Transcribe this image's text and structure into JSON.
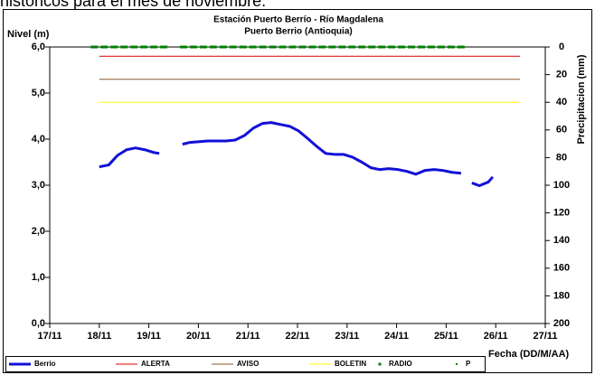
{
  "chart_data": {
    "type": "line",
    "caption": "históricos para el mes de noviembre.",
    "title": "Estación Puerto Berrío - Río Magdalena",
    "subtitle": "Puerto Berrio (Antioquia)",
    "ylabel": "Nivel (m)",
    "y2label": "Precipitacion (mm)",
    "xlabel": "Fecha (DD/M/AA)",
    "xlim": [
      17,
      27
    ],
    "xticks": [
      {
        "value": 17,
        "label": "17/11"
      },
      {
        "value": 18,
        "label": "18/11"
      },
      {
        "value": 19,
        "label": "19/11"
      },
      {
        "value": 20,
        "label": "20/11"
      },
      {
        "value": 21,
        "label": "21/11"
      },
      {
        "value": 22,
        "label": "22/11"
      },
      {
        "value": 23,
        "label": "23/11"
      },
      {
        "value": 24,
        "label": "24/11"
      },
      {
        "value": 25,
        "label": "25/11"
      },
      {
        "value": 26,
        "label": "26/11"
      },
      {
        "value": 27,
        "label": "27/11"
      }
    ],
    "ylim": [
      0,
      6
    ],
    "yticks": [
      {
        "value": 0,
        "label": "0,0"
      },
      {
        "value": 1,
        "label": "1,0"
      },
      {
        "value": 2,
        "label": "2,0"
      },
      {
        "value": 3,
        "label": "3,0"
      },
      {
        "value": 4,
        "label": "4,0"
      },
      {
        "value": 5,
        "label": "5,0"
      },
      {
        "value": 6,
        "label": "6,0"
      }
    ],
    "y2lim": [
      200,
      0
    ],
    "y2ticks": [
      0,
      20,
      40,
      60,
      80,
      100,
      120,
      140,
      160,
      180,
      200
    ],
    "series": [
      {
        "name": "Berrio",
        "color": "#1010d8",
        "style": "line",
        "width": 3,
        "x": [
          18.0,
          18.19,
          18.37,
          18.55,
          18.73,
          18.92,
          19.1,
          19.21,
          19.5,
          19.68,
          19.83,
          20.19,
          20.56,
          20.74,
          20.93,
          21.11,
          21.29,
          21.47,
          21.65,
          21.84,
          22.02,
          22.2,
          22.38,
          22.57,
          22.75,
          22.93,
          23.11,
          23.3,
          23.48,
          23.66,
          23.84,
          24.03,
          24.21,
          24.39,
          24.57,
          24.76,
          24.94,
          25.12,
          25.3,
          25.45,
          25.52,
          25.67,
          25.85,
          25.94
        ],
        "values": [
          3.4,
          3.44,
          3.65,
          3.77,
          3.81,
          3.77,
          3.71,
          3.69,
          null,
          3.89,
          3.93,
          3.96,
          3.96,
          3.98,
          4.08,
          4.24,
          4.34,
          4.36,
          4.32,
          4.28,
          4.18,
          4.02,
          3.85,
          3.69,
          3.67,
          3.67,
          3.61,
          3.5,
          3.38,
          3.34,
          3.36,
          3.34,
          3.3,
          3.24,
          3.32,
          3.34,
          3.32,
          3.28,
          3.26,
          null,
          3.05,
          2.99,
          3.07,
          3.18
        ]
      },
      {
        "name": "ALERTA",
        "color": "#e00000",
        "style": "line",
        "width": 1,
        "x": [
          18.0,
          26.49
        ],
        "values": [
          5.8,
          5.8
        ]
      },
      {
        "name": "AVISO",
        "color": "#8b5a2b",
        "style": "line",
        "width": 1,
        "x": [
          18.0,
          26.49
        ],
        "values": [
          5.3,
          5.3
        ]
      },
      {
        "name": "BOLETIN",
        "color": "#ffff00",
        "style": "line",
        "width": 1,
        "x": [
          18.0,
          26.49
        ],
        "values": [
          4.8,
          4.8
        ]
      },
      {
        "name": "RADIO",
        "color": "#008000",
        "style": "points"
      },
      {
        "name": "P",
        "color": "#008000",
        "style": "points",
        "axis": "y2",
        "x": [
          17.9,
          18.1,
          18.3,
          18.5,
          18.7,
          18.9,
          19.1,
          19.3,
          19.5,
          19.7,
          19.9,
          20.1,
          20.3,
          20.5,
          20.7,
          20.9,
          21.1,
          21.3,
          21.5,
          21.7,
          21.9,
          22.1,
          22.3,
          22.5,
          22.7,
          22.9,
          23.1,
          23.3,
          23.5,
          23.7,
          23.9,
          24.1,
          24.3,
          24.5,
          24.7,
          24.9,
          25.1,
          25.3
        ],
        "values": [
          0,
          0,
          0,
          0,
          0,
          0,
          0,
          0,
          null,
          0,
          0,
          0,
          0,
          0,
          0,
          0,
          0,
          0,
          0,
          0,
          0,
          0,
          0,
          0,
          0,
          0,
          0,
          0,
          0,
          0,
          0,
          0,
          0,
          0,
          0,
          0,
          0,
          0
        ]
      }
    ]
  }
}
